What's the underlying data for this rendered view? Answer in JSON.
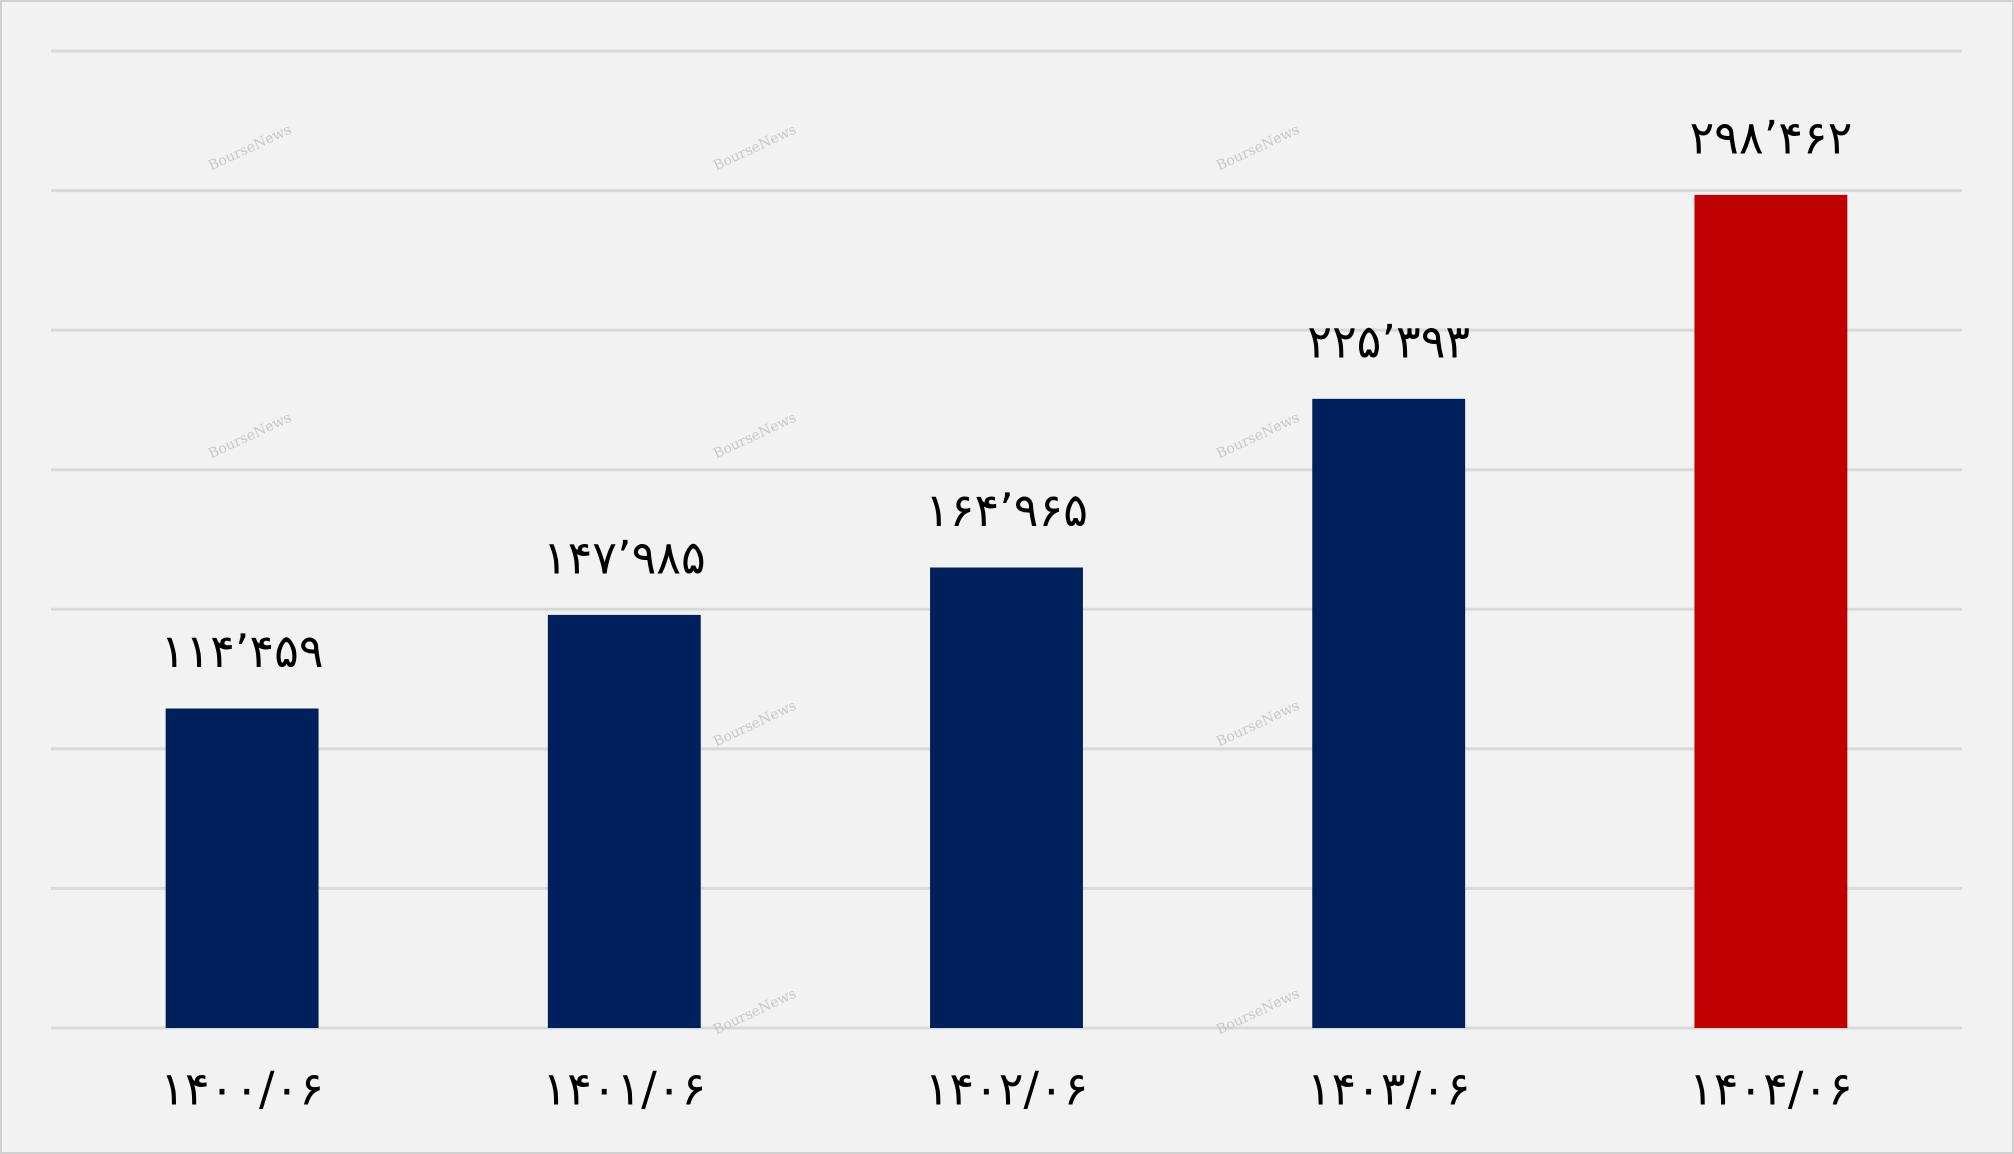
{
  "chart_data": {
    "type": "bar",
    "categories": [
      "۱۴۰۰/۰۶",
      "۱۴۰۱/۰۶",
      "۱۴۰۲/۰۶",
      "۱۴۰۳/۰۶",
      "۱۴۰۴/۰۶"
    ],
    "values": [
      114459,
      147985,
      164965,
      225393,
      298462
    ],
    "value_labels": [
      "۱۱۴’۴۵۹",
      "۱۴۷’۹۸۵",
      "۱۶۴’۹۶۵",
      "۲۲۵’۳۹۳",
      "۲۹۸’۴۶۲"
    ],
    "colors": [
      "#00205b",
      "#00205b",
      "#00205b",
      "#00205b",
      "#c00000"
    ],
    "ylim": [
      0,
      350000
    ],
    "yticks": [
      0,
      50000,
      100000,
      150000,
      200000,
      250000,
      300000,
      350000
    ],
    "grid": true,
    "watermark": "BourseNews"
  }
}
